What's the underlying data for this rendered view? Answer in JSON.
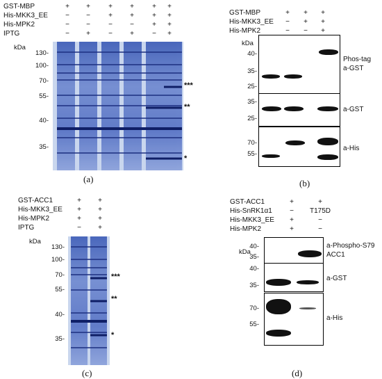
{
  "panel_a": {
    "letter": "(a)",
    "rows": [
      {
        "label": "GST-MBP",
        "signs": [
          "+",
          "+",
          "+",
          "+",
          "+",
          "+"
        ]
      },
      {
        "label": "His-MKK3_EE",
        "signs": [
          "−",
          "−",
          "+",
          "+",
          "+",
          "+"
        ]
      },
      {
        "label": "His-MPK2",
        "signs": [
          "−",
          "−",
          "−",
          "−",
          "+",
          "+"
        ]
      },
      {
        "label": "IPTG",
        "signs": [
          "−",
          "+",
          "−",
          "+",
          "−",
          "+"
        ]
      }
    ],
    "kda": "kDa",
    "markers": [
      "130-",
      "100-",
      "70-",
      "55-",
      "40-",
      "35-"
    ],
    "asterisks": [
      "***",
      "**",
      "*"
    ]
  },
  "panel_b": {
    "letter": "(b)",
    "rows": [
      {
        "label": "GST-MBP",
        "signs": [
          "+",
          "+",
          "+"
        ]
      },
      {
        "label": "His-MKK3_EE",
        "signs": [
          "−",
          "+",
          "+"
        ]
      },
      {
        "label": "His-MPK2",
        "signs": [
          "−",
          "−",
          "+"
        ]
      }
    ],
    "kda": "kDa",
    "blot1_markers": [
      "40-",
      "35-",
      "25-"
    ],
    "blot1_label_1": "Phos-tag",
    "blot1_label_2": "a-GST",
    "blot2_markers": [
      "35-",
      "25-"
    ],
    "blot2_label": "a-GST",
    "blot3_markers": [
      "70-",
      "55-"
    ],
    "blot3_label": "a-His"
  },
  "panel_c": {
    "letter": "(c)",
    "rows": [
      {
        "label": "GST-ACC1",
        "signs": [
          "+",
          "+"
        ]
      },
      {
        "label": "His-MKK3_EE",
        "signs": [
          "+",
          "+"
        ]
      },
      {
        "label": "His-MPK2",
        "signs": [
          "+",
          "+"
        ]
      },
      {
        "label": "IPTG",
        "signs": [
          "−",
          "+"
        ]
      }
    ],
    "kda": "kDa",
    "markers": [
      "130-",
      "100-",
      "70-",
      "55-",
      "40-",
      "35-"
    ],
    "asterisks": [
      "***",
      "**",
      "*"
    ]
  },
  "panel_d": {
    "letter": "(d)",
    "rows": [
      {
        "label": "GST-ACC1",
        "signs": [
          "+",
          "+"
        ]
      },
      {
        "label": "His-SnRK1α1",
        "signs": [
          "−",
          "T175D"
        ]
      },
      {
        "label": "His-MKK3_EE",
        "signs": [
          "+",
          "−"
        ]
      },
      {
        "label": "His-MPK2",
        "signs": [
          "+",
          "−"
        ]
      }
    ],
    "kda": "kDa",
    "blot1_markers": [
      "40-",
      "35-"
    ],
    "blot1_label_1": "a-Phospho-S79",
    "blot1_label_2": "ACC1",
    "blot2_markers": [
      "40-",
      "35-"
    ],
    "blot2_label": "a-GST",
    "blot3_markers": [
      "70-",
      "55-"
    ],
    "blot3_label": "a-His"
  }
}
